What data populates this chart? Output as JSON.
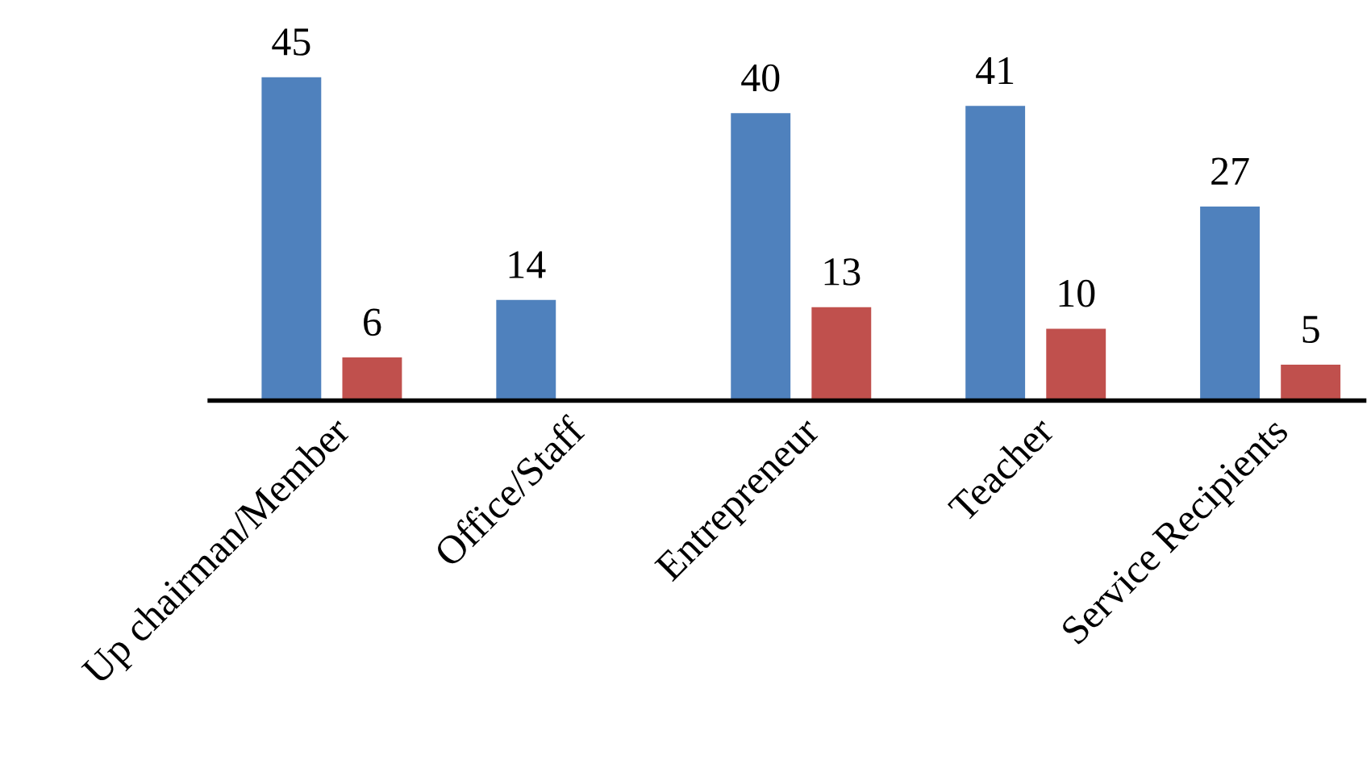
{
  "chart_data": {
    "type": "bar",
    "categories": [
      "Up chairman/Member",
      "Office/Staff",
      "Entrepreneur",
      "Teacher",
      "Service Recipients"
    ],
    "series": [
      {
        "color": "#4f81bd",
        "values": [
          45,
          14,
          40,
          41,
          27
        ]
      },
      {
        "color": "#c0504d",
        "values": [
          6,
          null,
          13,
          10,
          5
        ]
      }
    ],
    "data_labels": true,
    "grid": false,
    "legend": false,
    "tick_labels": "x"
  }
}
